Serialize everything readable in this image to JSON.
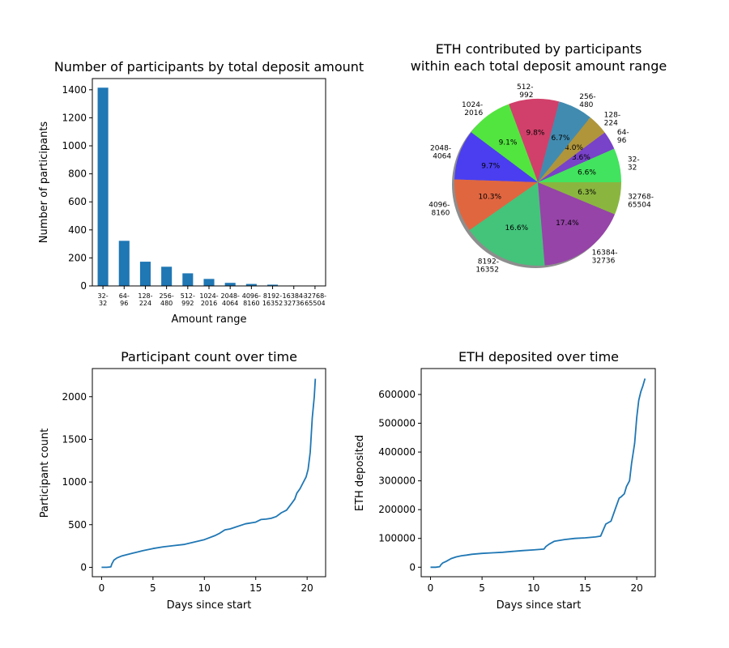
{
  "colors": {
    "bar": "#1f77b4",
    "line": "#1f77b4",
    "axis": "#000000"
  },
  "chart_data": [
    {
      "type": "bar",
      "title": "Number of participants by total deposit amount",
      "xlabel": "Amount range",
      "ylabel": "Number of participants",
      "categories": [
        "32-\n32",
        "64-\n96",
        "128-\n224",
        "256-\n480",
        "512-\n992",
        "1024-\n2016",
        "2048-\n4064",
        "4096-\n8160",
        "8192-\n16352",
        "16384-\n32736",
        "32768-\n65504"
      ],
      "values": [
        1415,
        322,
        173,
        137,
        90,
        50,
        22,
        14,
        9,
        3,
        2
      ],
      "ylim": [
        0,
        1480
      ],
      "yticks": [
        0,
        200,
        400,
        600,
        800,
        1000,
        1200,
        1400
      ],
      "grid": false
    },
    {
      "type": "pie",
      "title": "ETH contributed by participants\nwithin each total deposit amount range",
      "slices": [
        {
          "label": "32-\n32",
          "percent": 6.6,
          "color": "#42e35e"
        },
        {
          "label": "64-\n96",
          "percent": 3.6,
          "color": "#7842c9"
        },
        {
          "label": "128-\n224",
          "percent": 4.0,
          "color": "#b0953b"
        },
        {
          "label": "256-\n480",
          "percent": 6.7,
          "color": "#418bb0"
        },
        {
          "label": "512-\n992",
          "percent": 9.8,
          "color": "#d1406a"
        },
        {
          "label": "1024-\n2016",
          "percent": 9.1,
          "color": "#52e53f"
        },
        {
          "label": "2048-\n4064",
          "percent": 9.7,
          "color": "#4a3ef0"
        },
        {
          "label": "4096-\n8160",
          "percent": 10.3,
          "color": "#e06640"
        },
        {
          "label": "8192-\n16352",
          "percent": 16.6,
          "color": "#43c47a"
        },
        {
          "label": "16384-\n32736",
          "percent": 17.4,
          "color": "#9644a8"
        },
        {
          "label": "32768-\n65504",
          "percent": 6.3,
          "color": "#8ab640"
        }
      ],
      "shadow": true
    },
    {
      "type": "line",
      "title": "Participant count over time",
      "xlabel": "Days since start",
      "ylabel": "Participant count",
      "xlim": [
        -0.9,
        21.8
      ],
      "ylim": [
        -110,
        2330
      ],
      "xticks": [
        0,
        5,
        10,
        15,
        20
      ],
      "yticks": [
        0,
        500,
        1000,
        1500,
        2000
      ],
      "x": [
        0,
        0.5,
        0.9,
        1.0,
        1.2,
        1.5,
        2.0,
        2.5,
        3.0,
        3.5,
        4.0,
        5.0,
        6.0,
        7.0,
        8.0,
        9.0,
        10.0,
        11.0,
        11.5,
        12.0,
        12.5,
        13.0,
        14.0,
        15.0,
        15.5,
        16.0,
        16.5,
        17.0,
        17.5,
        18.0,
        18.5,
        18.8,
        19.0,
        19.3,
        19.6,
        19.9,
        20.1,
        20.3,
        20.5,
        20.7,
        20.8
      ],
      "y": [
        0,
        0,
        5,
        40,
        85,
        110,
        135,
        150,
        165,
        180,
        195,
        220,
        240,
        255,
        268,
        295,
        325,
        370,
        400,
        440,
        450,
        470,
        510,
        530,
        560,
        565,
        575,
        595,
        640,
        670,
        750,
        800,
        870,
        920,
        990,
        1060,
        1150,
        1350,
        1750,
        2000,
        2210
      ],
      "grid": false
    },
    {
      "type": "line",
      "title": "ETH deposited over time",
      "xlabel": "Days since start",
      "ylabel": "ETH deposited",
      "xlim": [
        -0.9,
        21.8
      ],
      "ylim": [
        -33000,
        690000
      ],
      "xticks": [
        0,
        5,
        10,
        15,
        20
      ],
      "yticks": [
        0,
        100000,
        200000,
        300000,
        400000,
        500000,
        600000
      ],
      "x": [
        0,
        0.5,
        0.9,
        1.0,
        1.2,
        1.5,
        2.0,
        2.5,
        3.0,
        3.5,
        4.0,
        5.0,
        6.0,
        7.0,
        8.0,
        9.0,
        10.0,
        11.0,
        11.2,
        11.5,
        12.0,
        13.0,
        14.0,
        15.0,
        16.0,
        16.5,
        17.0,
        17.5,
        17.8,
        18.0,
        18.3,
        18.5,
        18.8,
        19.0,
        19.3,
        19.5,
        19.8,
        20.0,
        20.2,
        20.4,
        20.6,
        20.8
      ],
      "y": [
        0,
        0,
        2000,
        8000,
        15000,
        20000,
        30000,
        36000,
        40000,
        42000,
        45000,
        48000,
        50000,
        52000,
        55000,
        58000,
        60000,
        63000,
        72000,
        80000,
        90000,
        96000,
        100000,
        102000,
        105000,
        108000,
        150000,
        160000,
        190000,
        210000,
        240000,
        245000,
        255000,
        280000,
        300000,
        360000,
        430000,
        520000,
        580000,
        610000,
        630000,
        655000
      ],
      "grid": false
    }
  ]
}
